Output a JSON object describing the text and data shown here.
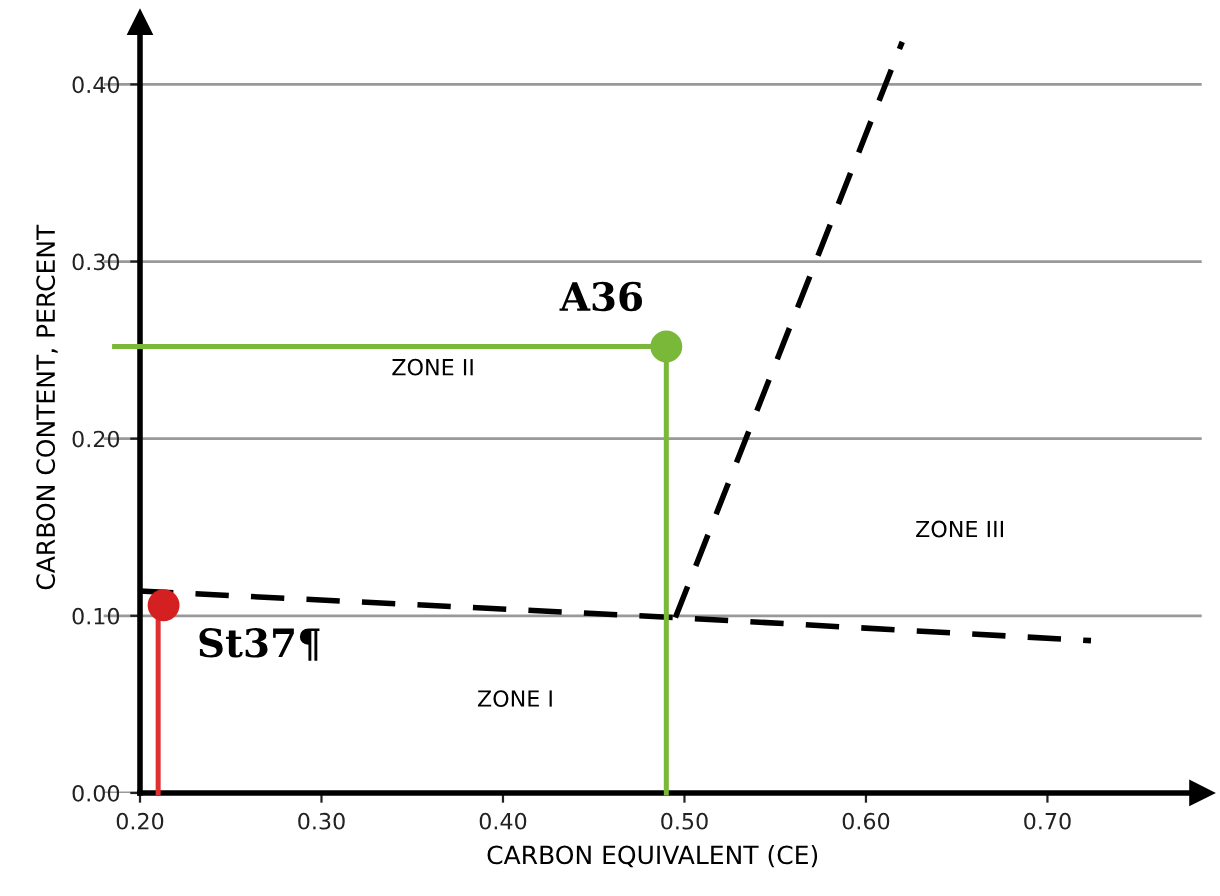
{
  "chart_data": {
    "type": "line",
    "xlabel": "CARBON EQUIVALENT (CE)",
    "ylabel": "CARBON CONTENT, PERCENT",
    "xlim": [
      0.18,
      0.785
    ],
    "ylim": [
      0,
      0.435
    ],
    "xticks": [
      {
        "value": 0.2,
        "label": "0.20"
      },
      {
        "value": 0.3,
        "label": "0.30"
      },
      {
        "value": 0.4,
        "label": "0.40"
      },
      {
        "value": 0.5,
        "label": "0.50"
      },
      {
        "value": 0.6,
        "label": "0.60"
      },
      {
        "value": 0.7,
        "label": "0.70"
      }
    ],
    "yticks": [
      {
        "value": 0,
        "label": "0.00"
      },
      {
        "value": 0.1,
        "label": "0.10"
      },
      {
        "value": 0.2,
        "label": "0.20"
      },
      {
        "value": 0.3,
        "label": "0.30"
      },
      {
        "value": 0.4,
        "label": "0.40"
      }
    ],
    "grid": "y",
    "series": [
      {
        "color": "#000000",
        "line_style": "dashed",
        "marker": "none",
        "x": [
          0.2,
          0.495,
          0.724
        ],
        "values": [
          0.114,
          0.099,
          0.086
        ]
      },
      {
        "color": "#000000",
        "line_style": "dashed",
        "marker": "none",
        "x": [
          0.495,
          0.62
        ],
        "values": [
          0.099,
          0.424
        ]
      },
      {
        "color": "#7ab83a",
        "line_style": "solid",
        "marker": "none",
        "x": [
          0.186,
          0.49,
          0.49
        ],
        "values": [
          0.252,
          0.252,
          0
        ]
      },
      {
        "color": "#e03030",
        "line_style": "solid",
        "marker": "none",
        "x": [
          0.21,
          0.21
        ],
        "values": [
          0.106,
          0
        ]
      },
      {
        "type": "scatter",
        "color": "#7ab83a",
        "marker": "circle",
        "x": [
          0.49
        ],
        "values": [
          0.252
        ]
      },
      {
        "type": "scatter",
        "color": "#d42020",
        "marker": "circle",
        "x": [
          0.213
        ],
        "values": [
          0.106
        ]
      }
    ],
    "annotations": [
      {
        "text": "A36",
        "x": 0.49,
        "y": 0.252
      },
      {
        "text": "St37¶",
        "x": 0.213,
        "y": 0.106
      },
      "ZONE II",
      "ZONE I",
      "ZONE III"
    ]
  }
}
